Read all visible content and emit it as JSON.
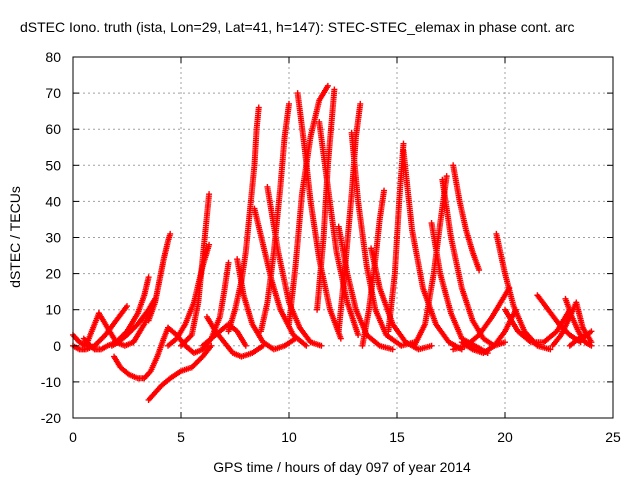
{
  "chart_data": {
    "type": "scatter",
    "title": "dSTEC Iono. truth (ista, Lon=29, Lat=41, h=147): STEC-STEC_elemax in phase cont. arc",
    "xlabel": "GPS time / hours of day 097 of year 2014",
    "ylabel": "dSTEC  / TECUs",
    "xlim": [
      0,
      25
    ],
    "ylim": [
      -20,
      80
    ],
    "x_ticks": [
      "0",
      "5",
      "10",
      "15",
      "20",
      "25"
    ],
    "y_ticks": [
      "-20",
      "-10",
      "0",
      "10",
      "20",
      "30",
      "40",
      "50",
      "60",
      "70",
      "80"
    ],
    "grid": true,
    "marker": "plus",
    "color": "#ff0000",
    "arcs": [
      {
        "x": [
          0.0,
          0.3,
          0.6,
          0.8,
          1.0,
          1.2
        ],
        "y": [
          3,
          1,
          0,
          3,
          6,
          9
        ]
      },
      {
        "x": [
          0.0,
          0.3,
          0.6,
          1.0,
          1.5,
          2.0,
          2.5
        ],
        "y": [
          0,
          -1,
          -1,
          0,
          3,
          7,
          11
        ]
      },
      {
        "x": [
          0.5,
          0.8,
          1.0,
          1.3,
          1.6,
          2.0,
          2.5,
          3.0,
          3.3,
          3.5
        ],
        "y": [
          2,
          0,
          -1,
          -1,
          0,
          1,
          4,
          9,
          14,
          19
        ]
      },
      {
        "x": [
          1.2,
          1.6,
          2.0,
          2.4,
          2.8,
          3.0,
          3.3,
          3.6
        ],
        "y": [
          9,
          5,
          1,
          0,
          1,
          3,
          6,
          10
        ]
      },
      {
        "x": [
          1.8,
          2.1,
          2.5,
          3.0,
          3.5,
          3.8
        ],
        "y": [
          0,
          1,
          3,
          6,
          10,
          13
        ]
      },
      {
        "x": [
          1.9,
          2.2,
          2.6,
          3.0,
          3.3,
          3.6,
          3.9,
          4.2,
          4.4
        ],
        "y": [
          -3,
          -6,
          -8,
          -9,
          -9,
          -7,
          -3,
          2,
          5
        ]
      },
      {
        "x": [
          3.5,
          3.8,
          4.1,
          4.5,
          5.0,
          5.5,
          6.0,
          6.4
        ],
        "y": [
          -15,
          -13,
          -11,
          -9,
          -7,
          -6,
          -3,
          0
        ]
      },
      {
        "x": [
          3.5,
          3.8,
          4.0,
          4.2,
          4.4,
          4.5
        ],
        "y": [
          7,
          12,
          18,
          24,
          29,
          31
        ]
      },
      {
        "x": [
          4.4,
          4.8,
          5.2,
          5.6,
          6.0
        ],
        "y": [
          5,
          3,
          0,
          -2,
          -1
        ]
      },
      {
        "x": [
          4.4,
          4.8,
          5.2,
          5.6,
          6.0,
          6.3
        ],
        "y": [
          0,
          2,
          6,
          12,
          22,
          28
        ]
      },
      {
        "x": [
          5.0,
          5.5,
          5.8,
          6.0,
          6.2,
          6.3
        ],
        "y": [
          0,
          3,
          12,
          24,
          36,
          42
        ]
      },
      {
        "x": [
          6.0,
          6.4,
          6.8,
          7.2,
          7.6,
          8.0
        ],
        "y": [
          0,
          2,
          4,
          6,
          4,
          0
        ]
      },
      {
        "x": [
          6.2,
          6.6,
          7.0,
          7.4,
          7.8,
          8.3,
          8.8
        ],
        "y": [
          8,
          4,
          1,
          -2,
          -3,
          -2,
          0
        ]
      },
      {
        "x": [
          6.0,
          6.4,
          6.8,
          7.0,
          7.2
        ],
        "y": [
          -1,
          2,
          8,
          15,
          23
        ]
      },
      {
        "x": [
          7.2,
          7.5,
          7.8,
          8.0,
          8.2,
          8.4,
          8.5,
          8.6
        ],
        "y": [
          4,
          10,
          18,
          26,
          38,
          50,
          60,
          66
        ]
      },
      {
        "x": [
          7.6,
          7.9,
          8.3,
          8.8,
          9.3,
          9.8,
          10.3
        ],
        "y": [
          24,
          14,
          6,
          1,
          -1,
          0,
          2
        ]
      },
      {
        "x": [
          8.4,
          8.8,
          9.2,
          9.6,
          10.2,
          10.8
        ],
        "y": [
          38,
          28,
          18,
          10,
          3,
          0
        ]
      },
      {
        "x": [
          8.7,
          9.0,
          9.3,
          9.6,
          9.8,
          10.0
        ],
        "y": [
          4,
          12,
          26,
          44,
          58,
          67
        ]
      },
      {
        "x": [
          9.0,
          9.5,
          10.0,
          10.5,
          11.0,
          11.5
        ],
        "y": [
          44,
          26,
          12,
          5,
          1,
          0
        ]
      },
      {
        "x": [
          10.0,
          10.3,
          10.6,
          11.0,
          11.4,
          11.8
        ],
        "y": [
          6,
          22,
          42,
          58,
          68,
          72
        ]
      },
      {
        "x": [
          10.4,
          10.7,
          11.0,
          11.4,
          11.9,
          12.4
        ],
        "y": [
          70,
          56,
          40,
          24,
          10,
          2
        ]
      },
      {
        "x": [
          11.3,
          11.6,
          11.8,
          12.0,
          12.1
        ],
        "y": [
          10,
          30,
          50,
          64,
          71
        ]
      },
      {
        "x": [
          11.4,
          11.8,
          12.2,
          12.7,
          13.2
        ],
        "y": [
          62,
          44,
          26,
          12,
          3
        ]
      },
      {
        "x": [
          12.3,
          12.6,
          12.9,
          13.1,
          13.3
        ],
        "y": [
          4,
          22,
          42,
          58,
          67
        ]
      },
      {
        "x": [
          12.3,
          12.7,
          13.1,
          13.6,
          14.2,
          14.8
        ],
        "y": [
          33,
          20,
          10,
          3,
          0,
          -1
        ]
      },
      {
        "x": [
          12.9,
          13.2,
          13.6,
          14.0,
          14.5,
          15.2,
          15.8
        ],
        "y": [
          59,
          40,
          22,
          10,
          3,
          0,
          1
        ]
      },
      {
        "x": [
          13.4,
          13.7,
          14.0,
          14.2,
          14.4
        ],
        "y": [
          0,
          10,
          24,
          35,
          43
        ]
      },
      {
        "x": [
          13.8,
          14.2,
          14.8,
          15.4,
          16.0,
          16.6
        ],
        "y": [
          27,
          16,
          6,
          1,
          -1,
          0
        ]
      },
      {
        "x": [
          14.6,
          14.9,
          15.1,
          15.3
        ],
        "y": [
          4,
          20,
          40,
          56
        ]
      },
      {
        "x": [
          15.3,
          15.7,
          16.2,
          16.8,
          17.4,
          18.0
        ],
        "y": [
          54,
          32,
          16,
          6,
          1,
          -1
        ]
      },
      {
        "x": [
          15.8,
          16.3,
          16.7,
          17.0,
          17.3
        ],
        "y": [
          0,
          6,
          20,
          34,
          47
        ]
      },
      {
        "x": [
          16.6,
          17.0,
          17.5,
          18.0,
          18.6,
          19.2
        ],
        "y": [
          34,
          20,
          9,
          2,
          0,
          -2
        ]
      },
      {
        "x": [
          17.1,
          17.5,
          18.0,
          18.5,
          19.0,
          19.5,
          20.0
        ],
        "y": [
          46,
          30,
          16,
          7,
          2,
          0,
          1
        ]
      },
      {
        "x": [
          17.6,
          17.9,
          18.2,
          18.5,
          18.8
        ],
        "y": [
          50,
          40,
          32,
          26,
          21
        ]
      },
      {
        "x": [
          17.6,
          18.2,
          18.8,
          19.4,
          19.8,
          20.2
        ],
        "y": [
          -1,
          0,
          3,
          8,
          12,
          16
        ]
      },
      {
        "x": [
          18.0,
          18.5,
          19.0,
          19.5,
          20.0,
          20.5
        ],
        "y": [
          1,
          -1,
          -2,
          0,
          4,
          10
        ]
      },
      {
        "x": [
          19.6,
          20.0,
          20.4,
          20.9,
          21.5,
          22.1
        ],
        "y": [
          31,
          20,
          11,
          4,
          0,
          -1
        ]
      },
      {
        "x": [
          20.0,
          20.6,
          21.2,
          21.8,
          22.4,
          23.0
        ],
        "y": [
          10,
          4,
          1,
          1,
          4,
          10
        ]
      },
      {
        "x": [
          21.5,
          22.0,
          22.5,
          23.0,
          23.5
        ],
        "y": [
          14,
          10,
          6,
          3,
          1
        ]
      },
      {
        "x": [
          22.2,
          22.6,
          23.0,
          23.3,
          23.6,
          24.0
        ],
        "y": [
          0,
          3,
          8,
          12,
          5,
          1
        ]
      },
      {
        "x": [
          22.8,
          23.1,
          23.4,
          23.7,
          24.0
        ],
        "y": [
          13,
          8,
          4,
          1,
          0
        ]
      },
      {
        "x": [
          23.0,
          23.4,
          23.8,
          24.0
        ],
        "y": [
          0,
          2,
          3,
          4
        ]
      }
    ]
  }
}
